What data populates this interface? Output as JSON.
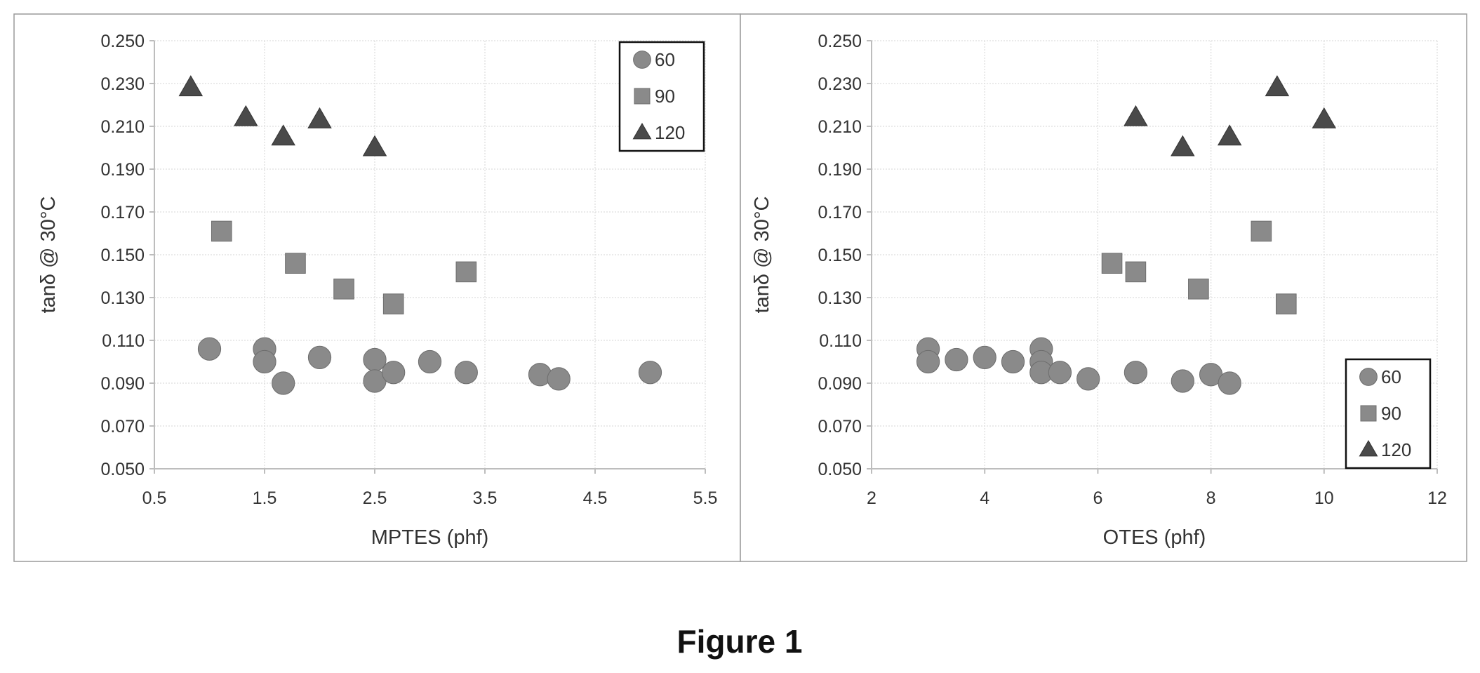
{
  "caption": "Figure 1",
  "colors": {
    "marker": "#8a8a8a",
    "marker_dark": "#4a4a4a",
    "axis": "#bdbdbd",
    "grid": "#dedede",
    "frame": "#9a9a9a",
    "text": "#333333"
  },
  "chart_data": [
    {
      "type": "scatter",
      "xlabel": "MPTES (phf)",
      "ylabel": "tanδ @ 30°C",
      "xlim": [
        0.5,
        5.5
      ],
      "ylim": [
        0.05,
        0.25
      ],
      "x_ticks": [
        "0.5",
        "1.5",
        "2.5",
        "3.5",
        "4.5",
        "5.5"
      ],
      "y_ticks": [
        "0.050",
        "0.070",
        "0.090",
        "0.110",
        "0.130",
        "0.150",
        "0.170",
        "0.190",
        "0.210",
        "0.230",
        "0.250"
      ],
      "legend_position": "top-right",
      "series": [
        {
          "name": "60",
          "marker": "circle",
          "x": [
            1.0,
            1.5,
            1.5,
            1.67,
            2.0,
            2.5,
            2.5,
            2.67,
            3.0,
            3.33,
            4.0,
            4.17,
            5.0
          ],
          "y": [
            0.106,
            0.106,
            0.1,
            0.09,
            0.102,
            0.101,
            0.091,
            0.095,
            0.1,
            0.095,
            0.094,
            0.092,
            0.095
          ]
        },
        {
          "name": "90",
          "marker": "square",
          "x": [
            1.11,
            1.78,
            2.22,
            2.67,
            3.33
          ],
          "y": [
            0.161,
            0.146,
            0.134,
            0.127,
            0.142
          ]
        },
        {
          "name": "120",
          "marker": "triangle",
          "x": [
            0.83,
            1.33,
            1.67,
            2.0,
            2.5
          ],
          "y": [
            0.228,
            0.214,
            0.205,
            0.213,
            0.2
          ]
        }
      ]
    },
    {
      "type": "scatter",
      "xlabel": "OTES (phf)",
      "ylabel": "tanδ @ 30°C",
      "xlim": [
        2,
        12
      ],
      "ylim": [
        0.05,
        0.25
      ],
      "x_ticks": [
        "2",
        "4",
        "6",
        "8",
        "10",
        "12"
      ],
      "y_ticks": [
        "0.050",
        "0.070",
        "0.090",
        "0.110",
        "0.130",
        "0.150",
        "0.170",
        "0.190",
        "0.210",
        "0.230",
        "0.250"
      ],
      "legend_position": "bottom-right",
      "series": [
        {
          "name": "60",
          "marker": "circle",
          "x": [
            3.0,
            3.0,
            3.5,
            4.0,
            4.5,
            5.0,
            5.0,
            5.0,
            5.33,
            5.83,
            6.67,
            7.5,
            8.0,
            8.33
          ],
          "y": [
            0.106,
            0.1,
            0.101,
            0.102,
            0.1,
            0.106,
            0.1,
            0.095,
            0.095,
            0.092,
            0.095,
            0.091,
            0.094,
            0.09
          ]
        },
        {
          "name": "90",
          "marker": "square",
          "x": [
            6.25,
            6.67,
            7.78,
            8.89,
            9.33
          ],
          "y": [
            0.146,
            0.142,
            0.134,
            0.161,
            0.127
          ]
        },
        {
          "name": "120",
          "marker": "triangle",
          "x": [
            6.67,
            7.5,
            8.33,
            9.17,
            10.0
          ],
          "y": [
            0.214,
            0.2,
            0.205,
            0.228,
            0.213
          ]
        }
      ]
    }
  ]
}
